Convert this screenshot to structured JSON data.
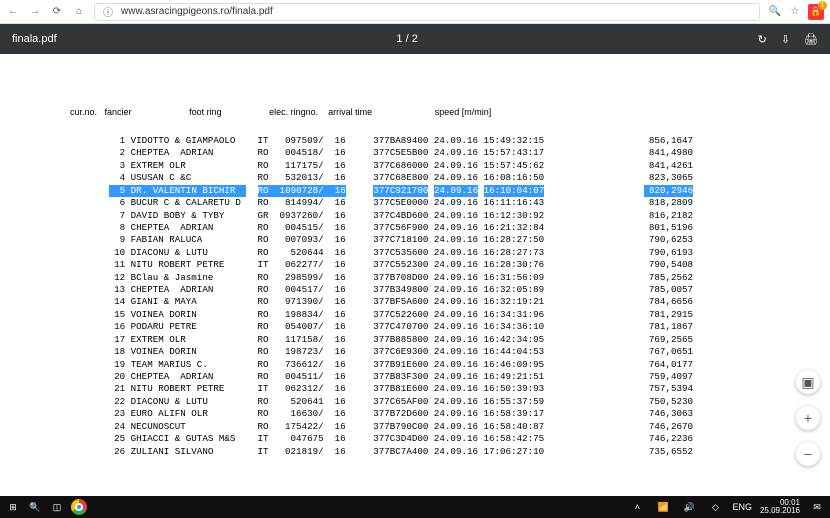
{
  "browser": {
    "url": "www.asracingpigeons.ro/finala.pdf"
  },
  "pdf": {
    "title": "finala.pdf",
    "page_indicator": "1 / 2"
  },
  "headers": {
    "curno": "cur.no.",
    "fancier": "fancier",
    "footring": "foot ring",
    "elec": "elec. ringno.",
    "arrival": "arrival time",
    "speed": "speed [m/min]"
  },
  "rows": [
    {
      "n": "1",
      "fancier": "VIDOTTO & GIAMPAOLO",
      "cc": "IT",
      "ring": "097509/",
      "yr": "16",
      "elec": "377BA89400",
      "date": "24.09.16",
      "time": "15:49:32:15",
      "speed": "856,1647"
    },
    {
      "n": "2",
      "fancier": "CHEPTEA  ADRIAN",
      "cc": "RO",
      "ring": "004518/",
      "yr": "16",
      "elec": "377C5E5B00",
      "date": "24.09.16",
      "time": "15:57:43:17",
      "speed": "841,4980"
    },
    {
      "n": "3",
      "fancier": "EXTREM OLR",
      "cc": "RO",
      "ring": "117175/",
      "yr": "16",
      "elec": "377C686000",
      "date": "24.09.16",
      "time": "15:57:45:62",
      "speed": "841,4261"
    },
    {
      "n": "4",
      "fancier": "USUSAN C &C",
      "cc": "RO",
      "ring": "532013/",
      "yr": "16",
      "elec": "377C68E800",
      "date": "24.09.16",
      "time": "16:08:16:50",
      "speed": "823,3065"
    },
    {
      "n": "5",
      "fancier": "DR. VALENTIN BICHIR",
      "cc": "RO",
      "ring": "1090728/",
      "yr": "16",
      "elec": "377C921700",
      "date": "24.09.16",
      "time": "16:10:04:07",
      "speed": "820,2946",
      "selected": true
    },
    {
      "n": "6",
      "fancier": "BUCUR C & CALARETU D",
      "cc": "RO",
      "ring": "814994/",
      "yr": "16",
      "elec": "377C5E0000",
      "date": "24.09.16",
      "time": "16:11:16:43",
      "speed": "818,2809"
    },
    {
      "n": "7",
      "fancier": "DAVID BOBY & TYBY",
      "cc": "GR",
      "ring": "0937260/",
      "yr": "16",
      "elec": "377C4BD600",
      "date": "24.09.16",
      "time": "16:12:30:92",
      "speed": "816,2182"
    },
    {
      "n": "8",
      "fancier": "CHEPTEA  ADRIAN",
      "cc": "RO",
      "ring": "004515/",
      "yr": "16",
      "elec": "377C56F900",
      "date": "24.09.16",
      "time": "16:21:32:84",
      "speed": "801,5196"
    },
    {
      "n": "9",
      "fancier": "FABIAN RALUCA",
      "cc": "RO",
      "ring": "007093/",
      "yr": "16",
      "elec": "377C718100",
      "date": "24.09.16",
      "time": "16:28:27:50",
      "speed": "790,6253"
    },
    {
      "n": "10",
      "fancier": "DIACONU & LUTU",
      "cc": "RO",
      "ring": "520644",
      "yr": "16",
      "elec": "377C535600",
      "date": "24.09.16",
      "time": "16:28:27:73",
      "speed": "790,6193"
    },
    {
      "n": "11",
      "fancier": "NITU ROBERT PETRE",
      "cc": "IT",
      "ring": "062277/",
      "yr": "16",
      "elec": "377C552300",
      "date": "24.09.16",
      "time": "16:28:30:76",
      "speed": "790,5408"
    },
    {
      "n": "12",
      "fancier": "BClau & Jasmine",
      "cc": "RO",
      "ring": "298599/",
      "yr": "16",
      "elec": "377B708D00",
      "date": "24.09.16",
      "time": "16:31:56:09",
      "speed": "785,2562"
    },
    {
      "n": "13",
      "fancier": "CHEPTEA  ADRIAN",
      "cc": "RO",
      "ring": "004517/",
      "yr": "16",
      "elec": "377B349800",
      "date": "24.09.16",
      "time": "16:32:05:89",
      "speed": "785,0057"
    },
    {
      "n": "14",
      "fancier": "GIANI & MAYA",
      "cc": "RO",
      "ring": "971390/",
      "yr": "16",
      "elec": "377BF5A600",
      "date": "24.09.16",
      "time": "16:32:19:21",
      "speed": "784,6656"
    },
    {
      "n": "15",
      "fancier": "VOINEA DORIN",
      "cc": "RO",
      "ring": "198834/",
      "yr": "16",
      "elec": "377C522600",
      "date": "24.09.16",
      "time": "16:34:31:96",
      "speed": "781,2915"
    },
    {
      "n": "16",
      "fancier": "PODARU PETRE",
      "cc": "RO",
      "ring": "054007/",
      "yr": "16",
      "elec": "377C470700",
      "date": "24.09.16",
      "time": "16:34:36:10",
      "speed": "781,1867"
    },
    {
      "n": "17",
      "fancier": "EXTREM OLR",
      "cc": "RO",
      "ring": "117158/",
      "yr": "16",
      "elec": "377B885800",
      "date": "24.09.16",
      "time": "16:42:34:95",
      "speed": "769,2565"
    },
    {
      "n": "18",
      "fancier": "VOINEA DORIN",
      "cc": "RO",
      "ring": "198723/",
      "yr": "16",
      "elec": "377C6E9300",
      "date": "24.09.16",
      "time": "16:44:04:53",
      "speed": "767,0651"
    },
    {
      "n": "19",
      "fancier": "TEAM MARIUS C.",
      "cc": "RO",
      "ring": "736612/",
      "yr": "16",
      "elec": "377B91E600",
      "date": "24.09.16",
      "time": "16:46:09:95",
      "speed": "764,0177"
    },
    {
      "n": "20",
      "fancier": "CHEPTEA  ADRIAN",
      "cc": "RO",
      "ring": "004511/",
      "yr": "16",
      "elec": "377B83F300",
      "date": "24.09.16",
      "time": "16:49:21:51",
      "speed": "759,4097"
    },
    {
      "n": "21",
      "fancier": "NITU ROBERT PETRE",
      "cc": "IT",
      "ring": "062312/",
      "yr": "16",
      "elec": "377B81E600",
      "date": "24.09.16",
      "time": "16:50:39:93",
      "speed": "757,5394"
    },
    {
      "n": "22",
      "fancier": "DIACONU & LUTU",
      "cc": "RO",
      "ring": "520641",
      "yr": "16",
      "elec": "377C65AF00",
      "date": "24.09.16",
      "time": "16:55:37:59",
      "speed": "750,5230"
    },
    {
      "n": "23",
      "fancier": "EURO ALIFN OLR",
      "cc": "RO",
      "ring": "16630/",
      "yr": "16",
      "elec": "377B72D600",
      "date": "24.09.16",
      "time": "16:58:39:17",
      "speed": "746,3063"
    },
    {
      "n": "24",
      "fancier": "NECUNOSCUT",
      "cc": "RO",
      "ring": "175422/",
      "yr": "16",
      "elec": "377B790C00",
      "date": "24.09.16",
      "time": "16:58:40:87",
      "speed": "746,2670"
    },
    {
      "n": "25",
      "fancier": "GHIACCI & GUTAS M&S",
      "cc": "IT",
      "ring": "047675",
      "yr": "16",
      "elec": "377C3D4D00",
      "date": "24.09.16",
      "time": "16:58:42:75",
      "speed": "746,2236"
    },
    {
      "n": "26",
      "fancier": "ZULIANI SILVANO",
      "cc": "IT",
      "ring": "021819/",
      "yr": "16",
      "elec": "377BC7A400",
      "date": "24.09.16",
      "time": "17:06:27:10",
      "speed": "735,6552"
    }
  ],
  "taskbar": {
    "lang": "ENG",
    "time": "00:01",
    "date": "25.09.2016"
  }
}
